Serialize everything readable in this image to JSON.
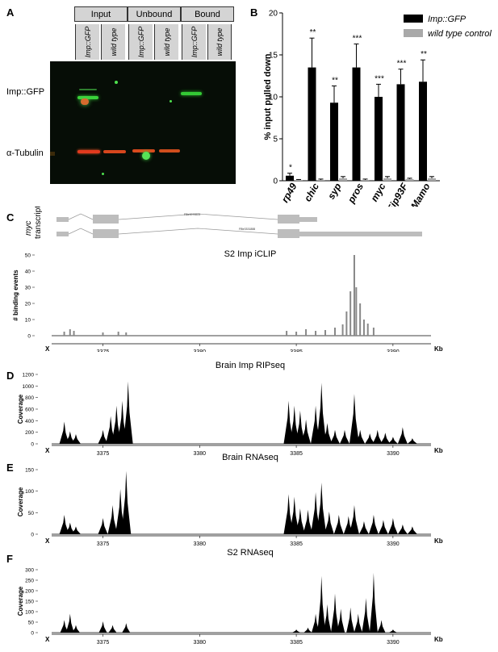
{
  "panels": {
    "a": "A",
    "b": "B",
    "c": "C",
    "d": "D",
    "e": "E",
    "f": "F"
  },
  "gel": {
    "groups": [
      "Input",
      "Unbound",
      "Bound"
    ],
    "lanes": [
      "Imp::GFP",
      "wild type",
      "Imp::GFP",
      "wild type",
      "Imp::GFP",
      "wild type"
    ],
    "row_labels": {
      "gfp": "Imp::GFP",
      "tubulin": "α-Tubulin"
    }
  },
  "bar_chart": {
    "title": "",
    "ylabel": "% input pulled down",
    "legend": [
      "Imp::GFP",
      "wild type control"
    ],
    "colors": {
      "imp": "#000000",
      "wt": "#a9a9a9"
    }
  },
  "myc": {
    "label_line1": "myc",
    "label_line2": "transcripts",
    "transcript1": "FBtr0076523",
    "transcript2": "FBtr0331888"
  },
  "coverage_panels": [
    {
      "title": "S2 Imp iCLIP",
      "ylabel": "# binding events",
      "yticks": [
        "50",
        "40",
        "30",
        "20",
        "10",
        "0"
      ],
      "xticks": [
        "3375",
        "3380",
        "3385",
        "3390"
      ],
      "x_left": "X",
      "x_right": "Kb"
    },
    {
      "title": "Brain Imp RIPseq",
      "ylabel": "Coverage",
      "yticks": [
        "1200",
        "1000",
        "800",
        "600",
        "400",
        "200",
        "0"
      ],
      "xticks": [
        "3375",
        "3380",
        "3385",
        "3390"
      ],
      "x_left": "X",
      "x_right": "Kb"
    },
    {
      "title": "Brain RNAseq",
      "ylabel": "Coverage",
      "yticks": [
        "150",
        "100",
        "50",
        "0"
      ],
      "xticks": [
        "3375",
        "3380",
        "3385",
        "3390"
      ],
      "x_left": "X",
      "x_right": "Kb"
    },
    {
      "title": "S2 RNAseq",
      "ylabel": "Coverage",
      "yticks": [
        "300",
        "250",
        "200",
        "150",
        "100",
        "50",
        "0"
      ],
      "xticks": [
        "3375",
        "3380",
        "3385",
        "3390"
      ],
      "x_left": "X",
      "x_right": "Kb"
    }
  ],
  "chart_data": {
    "type": "bar",
    "categories": [
      "rp49",
      "chic",
      "syp",
      "pros",
      "myc",
      "Eip93F",
      "Mamo"
    ],
    "series": [
      {
        "name": "Imp::GFP",
        "values": [
          0.6,
          13.5,
          9.3,
          13.5,
          10.0,
          11.5,
          11.8
        ],
        "errors": [
          0.3,
          3.5,
          2.0,
          2.8,
          1.5,
          1.8,
          2.6
        ]
      },
      {
        "name": "wild type control",
        "values": [
          0.1,
          0.1,
          0.3,
          0.1,
          0.3,
          0.2,
          0.3
        ],
        "errors": [
          0.05,
          0.1,
          0.2,
          0.1,
          0.2,
          0.1,
          0.2
        ]
      }
    ],
    "significance": [
      "*",
      "**",
      "**",
      "***",
      "***",
      "***",
      "**"
    ],
    "ylabel": "% input pulled down",
    "yticks": [
      0,
      5,
      10,
      15,
      20
    ],
    "ylim": [
      0,
      20
    ]
  }
}
